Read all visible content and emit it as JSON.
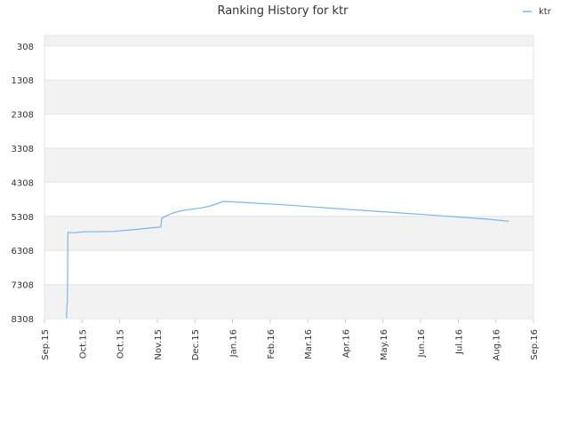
{
  "chart_data": {
    "type": "line",
    "title": "Ranking History for ktr",
    "xlabel": "",
    "ylabel": "",
    "y_inverted": true,
    "ylim": [
      8308,
      0
    ],
    "y_ticks": [
      308,
      1308,
      2308,
      3308,
      4308,
      5308,
      6308,
      7308,
      8308
    ],
    "x_ticks": [
      "Sep.15",
      "Oct.15",
      "Oct.15",
      "Nov.15",
      "Dec.15",
      "Jan.16",
      "Feb.16",
      "Mar.16",
      "Apr.16",
      "May.16",
      "Jun.16",
      "Jul.16",
      "Aug.16",
      "Sep.16"
    ],
    "legend": {
      "position": "top-right",
      "entries": [
        "ktr"
      ]
    },
    "grid": true,
    "series": [
      {
        "name": "ktr",
        "color": "#7cb5ec",
        "points": [
          [
            0.045,
            8308
          ],
          [
            0.046,
            7900
          ],
          [
            0.047,
            7850
          ],
          [
            0.048,
            5780
          ],
          [
            0.06,
            5790
          ],
          [
            0.08,
            5760
          ],
          [
            0.14,
            5750
          ],
          [
            0.18,
            5700
          ],
          [
            0.22,
            5640
          ],
          [
            0.238,
            5620
          ],
          [
            0.24,
            5360
          ],
          [
            0.26,
            5220
          ],
          [
            0.28,
            5140
          ],
          [
            0.3,
            5100
          ],
          [
            0.32,
            5060
          ],
          [
            0.34,
            5000
          ],
          [
            0.365,
            4870
          ],
          [
            0.385,
            4880
          ],
          [
            0.5,
            4980
          ],
          [
            0.6,
            5080
          ],
          [
            0.7,
            5180
          ],
          [
            0.8,
            5280
          ],
          [
            0.9,
            5380
          ],
          [
            0.95,
            5450
          ]
        ]
      }
    ]
  }
}
